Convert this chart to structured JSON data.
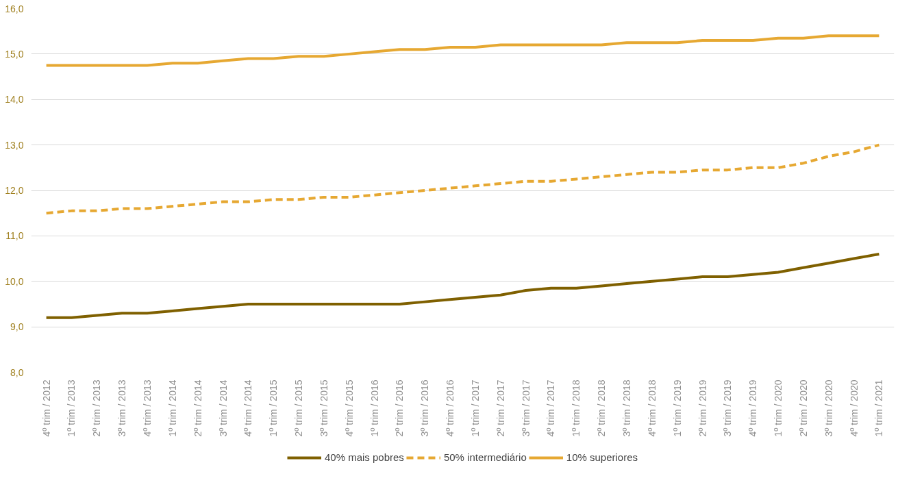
{
  "chart_data": {
    "type": "line",
    "categories": [
      "4º trim / 2012",
      "1º trim / 2013",
      "2º trim / 2013",
      "3º trim / 2013",
      "4º trim / 2013",
      "1º trim / 2014",
      "2º trim / 2014",
      "3º trim / 2014",
      "4º trim / 2014",
      "1º trim / 2015",
      "2º trim / 2015",
      "3º trim / 2015",
      "4º trim / 2015",
      "1º trim / 2016",
      "2º trim / 2016",
      "3º trim / 2016",
      "4º trim / 2016",
      "1º trim / 2017",
      "2º trim / 2017",
      "3º trim / 2017",
      "4º trim / 2017",
      "1º trim / 2018",
      "2º trim / 2018",
      "3º trim / 2018",
      "4º trim / 2018",
      "1º trim / 2019",
      "2º trim / 2019",
      "3º trim / 2019",
      "4º trim / 2019",
      "1º trim / 2020",
      "2º trim / 2020",
      "3º trim / 2020",
      "4º trim / 2020",
      "1º trim / 2021"
    ],
    "series": [
      {
        "name": "40% mais pobres",
        "color": "#7f6000",
        "line_style": "solid",
        "values": [
          9.2,
          9.2,
          9.25,
          9.3,
          9.3,
          9.35,
          9.4,
          9.45,
          9.5,
          9.5,
          9.5,
          9.5,
          9.5,
          9.5,
          9.5,
          9.55,
          9.6,
          9.65,
          9.7,
          9.8,
          9.85,
          9.85,
          9.9,
          9.95,
          10.0,
          10.05,
          10.1,
          10.1,
          10.15,
          10.2,
          10.3,
          10.4,
          10.5,
          10.6
        ]
      },
      {
        "name": "50% intermediário",
        "color": "#e6a832",
        "line_style": "dashed",
        "values": [
          11.5,
          11.55,
          11.55,
          11.6,
          11.6,
          11.65,
          11.7,
          11.75,
          11.75,
          11.8,
          11.8,
          11.85,
          11.85,
          11.9,
          11.95,
          12.0,
          12.05,
          12.1,
          12.15,
          12.2,
          12.2,
          12.25,
          12.3,
          12.35,
          12.4,
          12.4,
          12.45,
          12.45,
          12.5,
          12.5,
          12.6,
          12.75,
          12.85,
          13.0
        ]
      },
      {
        "name": "10% superiores",
        "color": "#e6a832",
        "line_style": "solid",
        "values": [
          14.75,
          14.75,
          14.75,
          14.75,
          14.75,
          14.8,
          14.8,
          14.85,
          14.9,
          14.9,
          14.95,
          14.95,
          15.0,
          15.05,
          15.1,
          15.1,
          15.15,
          15.15,
          15.2,
          15.2,
          15.2,
          15.2,
          15.2,
          15.25,
          15.25,
          15.25,
          15.3,
          15.3,
          15.3,
          15.35,
          15.35,
          15.4,
          15.4,
          15.4
        ]
      }
    ],
    "ylim": [
      8,
      16
    ],
    "yticks": [
      {
        "value": 8,
        "label": "8,0"
      },
      {
        "value": 9,
        "label": "9,0"
      },
      {
        "value": 10,
        "label": "10,0"
      },
      {
        "value": 11,
        "label": "11,0"
      },
      {
        "value": 12,
        "label": "12,0"
      },
      {
        "value": 13,
        "label": "13,0"
      },
      {
        "value": 14,
        "label": "14,0"
      },
      {
        "value": 15,
        "label": "15,0"
      },
      {
        "value": 16,
        "label": "16,0"
      }
    ],
    "grid": "y",
    "legend": "bottom",
    "marker": "none"
  }
}
